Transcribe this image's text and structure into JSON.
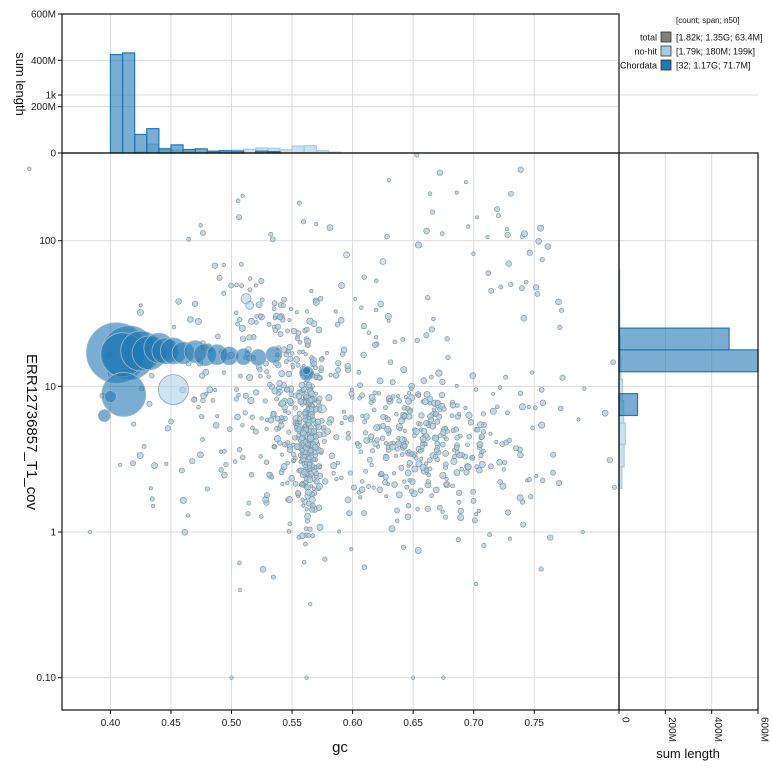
{
  "chart_data": {
    "type": "scatter",
    "xlabel": "gc",
    "ylabel": "ERR12736857_T1_cov",
    "xlim": [
      0.36,
      0.82
    ],
    "ylim_log": [
      0.06,
      400
    ],
    "x_ticks": [
      {
        "v": 0.4,
        "label": "0.40"
      },
      {
        "v": 0.45,
        "label": "0.45"
      },
      {
        "v": 0.5,
        "label": "0.50"
      },
      {
        "v": 0.55,
        "label": "0.55"
      },
      {
        "v": 0.6,
        "label": "0.60"
      },
      {
        "v": 0.65,
        "label": "0.65"
      },
      {
        "v": 0.7,
        "label": "0.70"
      },
      {
        "v": 0.75,
        "label": "0.75"
      }
    ],
    "y_ticks": [
      {
        "v": 0.1,
        "label": "0.10"
      },
      {
        "v": 1,
        "label": "1"
      },
      {
        "v": 10,
        "label": "10"
      },
      {
        "v": 100,
        "label": "100"
      },
      {
        "v": 1000,
        "label": "1k"
      }
    ],
    "legend": {
      "header": "[count; span; n50]",
      "items": [
        {
          "name": "total",
          "stats": "[1.82k; 1.35G; 63.4M]",
          "color": "#808080"
        },
        {
          "name": "no-hit",
          "stats": "[1.79k; 180M; 199k]",
          "color": "#a6cee3"
        },
        {
          "name": "Chordata",
          "stats": "[32; 1.17G; 71.7M]",
          "color": "#1f78b4"
        }
      ]
    },
    "top_histogram": {
      "ylabel": "sum length",
      "ylim": [
        0,
        600
      ],
      "y_ticks": [
        {
          "v": 0,
          "label": "0"
        },
        {
          "v": 200,
          "label": "200M"
        },
        {
          "v": 400,
          "label": "400M"
        },
        {
          "v": 600,
          "label": "600M"
        }
      ],
      "bin_width": 0.01,
      "series": [
        {
          "name": "Chordata",
          "color": "#1f78b4",
          "bins": [
            {
              "x": 0.4,
              "v": 425
            },
            {
              "x": 0.41,
              "v": 432
            },
            {
              "x": 0.42,
              "v": 80
            },
            {
              "x": 0.43,
              "v": 105
            },
            {
              "x": 0.44,
              "v": 18
            },
            {
              "x": 0.45,
              "v": 35
            },
            {
              "x": 0.46,
              "v": 15
            },
            {
              "x": 0.47,
              "v": 18
            },
            {
              "x": 0.48,
              "v": 8
            },
            {
              "x": 0.49,
              "v": 10
            },
            {
              "x": 0.5,
              "v": 8
            },
            {
              "x": 0.52,
              "v": 8
            },
            {
              "x": 0.53,
              "v": 6
            }
          ]
        },
        {
          "name": "no-hit",
          "color": "#a6cee3",
          "bins": [
            {
              "x": 0.42,
              "v": 4
            },
            {
              "x": 0.43,
              "v": 38
            },
            {
              "x": 0.44,
              "v": 20
            },
            {
              "x": 0.45,
              "v": 12
            },
            {
              "x": 0.46,
              "v": 6
            },
            {
              "x": 0.47,
              "v": 4
            },
            {
              "x": 0.48,
              "v": 6
            },
            {
              "x": 0.49,
              "v": 10
            },
            {
              "x": 0.5,
              "v": 12
            },
            {
              "x": 0.51,
              "v": 16
            },
            {
              "x": 0.52,
              "v": 22
            },
            {
              "x": 0.53,
              "v": 20
            },
            {
              "x": 0.54,
              "v": 14
            },
            {
              "x": 0.55,
              "v": 30
            },
            {
              "x": 0.56,
              "v": 32
            },
            {
              "x": 0.57,
              "v": 10
            },
            {
              "x": 0.58,
              "v": 4
            }
          ]
        }
      ]
    },
    "right_histogram": {
      "xlabel": "sum length",
      "xlim": [
        0,
        600
      ],
      "x_ticks": [
        {
          "v": 0,
          "label": "0"
        },
        {
          "v": 200,
          "label": "200M"
        },
        {
          "v": 400,
          "label": "400M"
        },
        {
          "v": 600,
          "label": "600M"
        }
      ],
      "series": [
        {
          "name": "Chordata",
          "color": "#1f78b4",
          "bins": [
            {
              "lo": 12.6,
              "hi": 17.8,
              "v": 600
            },
            {
              "lo": 17.8,
              "hi": 25.1,
              "v": 475
            },
            {
              "lo": 6.31,
              "hi": 8.91,
              "v": 80
            }
          ]
        },
        {
          "name": "no-hit",
          "color": "#a6cee3",
          "bins": [
            {
              "lo": 2.0,
              "hi": 2.8,
              "v": 12
            },
            {
              "lo": 2.8,
              "hi": 4.0,
              "v": 22
            },
            {
              "lo": 4.0,
              "hi": 5.6,
              "v": 28
            },
            {
              "lo": 5.6,
              "hi": 8.0,
              "v": 20
            },
            {
              "lo": 8.0,
              "hi": 11.2,
              "v": 15
            },
            {
              "lo": 11.2,
              "hi": 16,
              "v": 8
            },
            {
              "lo": 16,
              "hi": 22,
              "v": 6
            },
            {
              "lo": 22,
              "hi": 32,
              "v": 4
            },
            {
              "lo": 32,
              "hi": 63,
              "v": 3
            }
          ]
        }
      ]
    },
    "chordata_points": [
      {
        "x": 0.405,
        "y": 17,
        "r": 30
      },
      {
        "x": 0.415,
        "y": 17,
        "r": 27
      },
      {
        "x": 0.41,
        "y": 16.5,
        "r": 22
      },
      {
        "x": 0.411,
        "y": 8.8,
        "r": 22
      },
      {
        "x": 0.425,
        "y": 17.5,
        "r": 20
      },
      {
        "x": 0.432,
        "y": 17,
        "r": 17
      },
      {
        "x": 0.44,
        "y": 18.3,
        "r": 15
      },
      {
        "x": 0.445,
        "y": 17.5,
        "r": 13
      },
      {
        "x": 0.452,
        "y": 17.5,
        "r": 13
      },
      {
        "x": 0.46,
        "y": 17,
        "r": 11
      },
      {
        "x": 0.47,
        "y": 17.3,
        "r": 11
      },
      {
        "x": 0.478,
        "y": 16.5,
        "r": 11
      },
      {
        "x": 0.488,
        "y": 16.5,
        "r": 10
      },
      {
        "x": 0.498,
        "y": 16.2,
        "r": 9
      },
      {
        "x": 0.51,
        "y": 16,
        "r": 8
      },
      {
        "x": 0.522,
        "y": 15.8,
        "r": 8
      },
      {
        "x": 0.535,
        "y": 16.5,
        "r": 8
      },
      {
        "x": 0.562,
        "y": 12.3,
        "r": 7
      },
      {
        "x": 0.395,
        "y": 6.3,
        "r": 6
      },
      {
        "x": 0.4,
        "y": 8.5,
        "r": 6
      },
      {
        "x": 0.562,
        "y": 12.8,
        "r": 4
      }
    ],
    "nohit_points": [
      {
        "x": 0.452,
        "y": 9.5,
        "r": 15
      },
      {
        "x": 0.512,
        "y": 40,
        "r": 5
      },
      {
        "x": 0.515,
        "y": 36,
        "r": 4
      },
      {
        "x": 0.575,
        "y": 7,
        "r": 4
      },
      {
        "x": 0.625,
        "y": 72,
        "r": 3
      },
      {
        "x": 0.595,
        "y": 80,
        "r": 3
      }
    ],
    "scatter_clusters": [
      {
        "cx": 0.563,
        "cy": 4.5,
        "sx": 0.005,
        "sy": 0.28,
        "n": 260
      },
      {
        "cx": 0.545,
        "cy": 5.5,
        "sx": 0.018,
        "sy": 0.35,
        "n": 130
      },
      {
        "cx": 0.655,
        "cy": 4.0,
        "sx": 0.04,
        "sy": 0.25,
        "n": 300
      },
      {
        "cx": 0.53,
        "cy": 25,
        "sx": 0.035,
        "sy": 0.4,
        "n": 110
      },
      {
        "cx": 0.48,
        "cy": 6.0,
        "sx": 0.04,
        "sy": 0.35,
        "n": 70
      },
      {
        "cx": 0.61,
        "cy": 8.0,
        "sx": 0.045,
        "sy": 0.45,
        "n": 90
      },
      {
        "cx": 0.74,
        "cy": 55,
        "sx": 0.012,
        "sy": 0.3,
        "n": 22
      },
      {
        "cx": 0.69,
        "cy": 180,
        "sx": 0.03,
        "sy": 0.2,
        "n": 18
      },
      {
        "cx": 0.75,
        "cy": 3.0,
        "sx": 0.04,
        "sy": 0.3,
        "n": 30
      }
    ],
    "scatter_outliers": [
      {
        "x": 0.333,
        "y": 312
      },
      {
        "x": 0.383,
        "y": 1.0
      },
      {
        "x": 0.408,
        "y": 2.9
      },
      {
        "x": 0.464,
        "y": 1.3
      },
      {
        "x": 0.5,
        "y": 0.1
      },
      {
        "x": 0.507,
        "y": 0.4
      },
      {
        "x": 0.562,
        "y": 0.1
      },
      {
        "x": 0.565,
        "y": 0.32
      },
      {
        "x": 0.65,
        "y": 0.1
      },
      {
        "x": 0.675,
        "y": 0.1
      },
      {
        "x": 0.702,
        "y": 0.44
      },
      {
        "x": 0.79,
        "y": 1.0
      },
      {
        "x": 0.73,
        "y": 0.9
      },
      {
        "x": 0.56,
        "y": 0.62
      },
      {
        "x": 0.63,
        "y": 260
      },
      {
        "x": 0.57,
        "y": 130
      }
    ]
  }
}
